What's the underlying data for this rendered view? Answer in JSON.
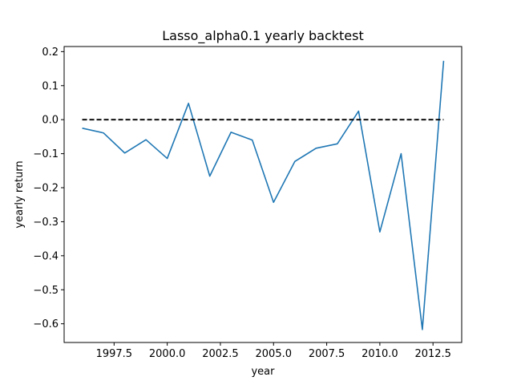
{
  "chart_data": {
    "type": "line",
    "title": "Lasso_alpha0.1 yearly backtest",
    "xlabel": "year",
    "ylabel": "yearly return",
    "xlim": [
      1995.15,
      2013.85
    ],
    "ylim": [
      -0.655,
      0.215
    ],
    "xticks": [
      1997.5,
      2000.0,
      2002.5,
      2005.0,
      2007.5,
      2010.0,
      2012.5
    ],
    "xtick_labels": [
      "1997.5",
      "2000.0",
      "2002.5",
      "2005.0",
      "2007.5",
      "2010.0",
      "2012.5"
    ],
    "yticks": [
      -0.6,
      -0.5,
      -0.4,
      -0.3,
      -0.2,
      -0.1,
      0.0,
      0.1,
      0.2
    ],
    "ytick_labels": [
      "−0.6",
      "−0.5",
      "−0.4",
      "−0.3",
      "−0.2",
      "−0.1",
      "0.0",
      "0.1",
      "0.2"
    ],
    "grid": false,
    "series": [
      {
        "x": [
          1996,
          1997,
          1998,
          1999,
          2000,
          2001,
          2002,
          2003,
          2004,
          2005,
          2006,
          2007,
          2008,
          2009,
          2010,
          2011,
          2012,
          2013
        ],
        "y": [
          -0.025,
          -0.039,
          -0.098,
          -0.059,
          -0.114,
          0.048,
          -0.166,
          -0.037,
          -0.06,
          -0.243,
          -0.123,
          -0.084,
          -0.071,
          0.025,
          -0.33,
          -0.1,
          -0.617,
          0.173
        ],
        "color": "#1f77b4",
        "style": "solid"
      },
      {
        "x": [
          1996,
          2013
        ],
        "y": [
          0.0,
          0.0
        ],
        "color": "#000000",
        "style": "dashed"
      }
    ]
  }
}
